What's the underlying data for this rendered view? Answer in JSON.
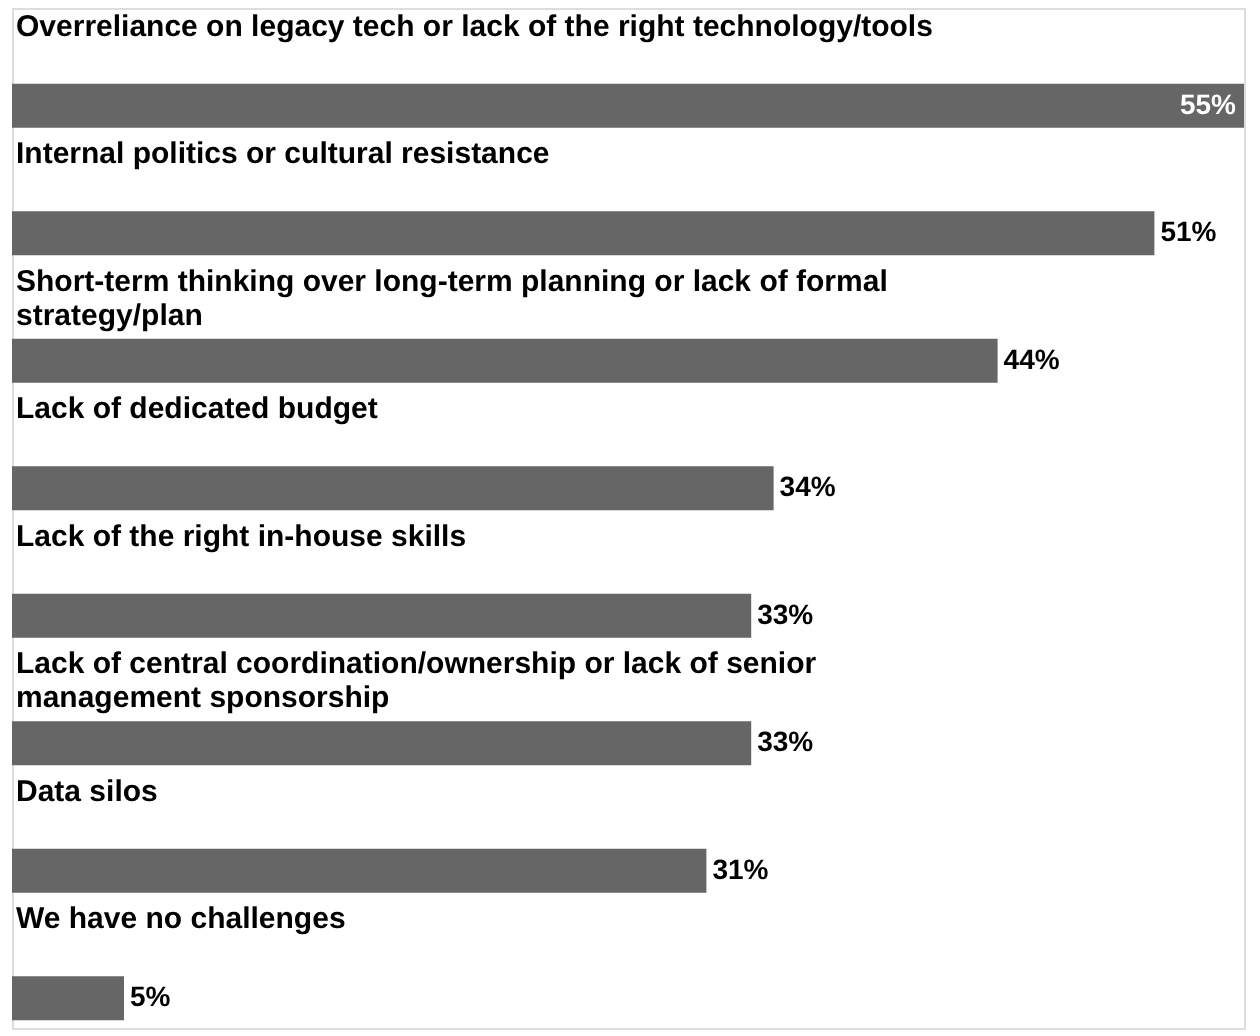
{
  "chart_data": {
    "type": "bar",
    "orientation": "horizontal",
    "categories": [
      "Overreliance on legacy tech or lack of the right technology/tools",
      "Internal politics or cultural resistance",
      "Short-term thinking over long-term planning or lack of formal strategy/plan",
      "Lack of dedicated budget",
      "Lack of the right in-house skills",
      "Lack of central coordination/ownership or lack of senior management sponsorship",
      "Data silos",
      "We have no challenges"
    ],
    "values": [
      55,
      51,
      44,
      34,
      33,
      33,
      31,
      5
    ],
    "value_labels": [
      "55%",
      "51%",
      "44%",
      "34%",
      "33%",
      "33%",
      "31%",
      "5%"
    ],
    "color": "#666666"
  }
}
